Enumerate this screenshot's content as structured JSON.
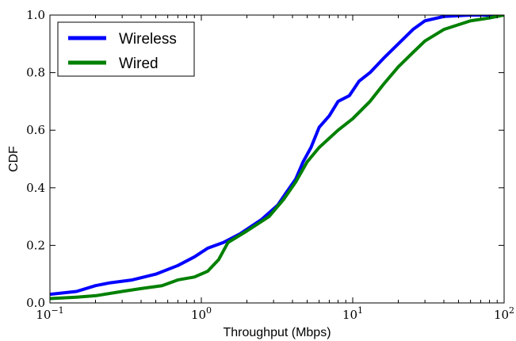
{
  "chart_data": {
    "type": "line",
    "title": "",
    "xlabel": "Throughput (Mbps)",
    "ylabel": "CDF",
    "xscale": "log",
    "xlim": [
      0.1,
      100
    ],
    "ylim": [
      0.0,
      1.0
    ],
    "x_ticks": [
      {
        "value": 0.1,
        "base": "10",
        "exp": "−1"
      },
      {
        "value": 1,
        "base": "10",
        "exp": "0"
      },
      {
        "value": 10,
        "base": "10",
        "exp": "1"
      },
      {
        "value": 100,
        "base": "10",
        "exp": "2"
      }
    ],
    "y_ticks": [
      {
        "value": 0.0,
        "label": "0.0"
      },
      {
        "value": 0.2,
        "label": "0.2"
      },
      {
        "value": 0.4,
        "label": "0.4"
      },
      {
        "value": 0.6,
        "label": "0.6"
      },
      {
        "value": 0.8,
        "label": "0.8"
      },
      {
        "value": 1.0,
        "label": "1.0"
      }
    ],
    "grid": false,
    "legend_position": "top-left",
    "series": [
      {
        "name": "Wireless",
        "color": "#0000ff",
        "points": [
          [
            0.1,
            0.03
          ],
          [
            0.15,
            0.04
          ],
          [
            0.2,
            0.06
          ],
          [
            0.25,
            0.07
          ],
          [
            0.35,
            0.08
          ],
          [
            0.5,
            0.1
          ],
          [
            0.7,
            0.13
          ],
          [
            0.9,
            0.16
          ],
          [
            1.1,
            0.19
          ],
          [
            1.4,
            0.21
          ],
          [
            1.8,
            0.24
          ],
          [
            2.5,
            0.29
          ],
          [
            3.2,
            0.34
          ],
          [
            3.6,
            0.38
          ],
          [
            4.2,
            0.43
          ],
          [
            4.7,
            0.49
          ],
          [
            5.3,
            0.54
          ],
          [
            6.0,
            0.61
          ],
          [
            7.0,
            0.65
          ],
          [
            8.0,
            0.7
          ],
          [
            9.5,
            0.72
          ],
          [
            11,
            0.77
          ],
          [
            13,
            0.8
          ],
          [
            16,
            0.85
          ],
          [
            20,
            0.9
          ],
          [
            25,
            0.95
          ],
          [
            30,
            0.98
          ],
          [
            40,
            0.995
          ],
          [
            60,
            1.0
          ],
          [
            100,
            1.0
          ]
        ]
      },
      {
        "name": "Wired",
        "color": "#008000",
        "points": [
          [
            0.1,
            0.015
          ],
          [
            0.15,
            0.02
          ],
          [
            0.2,
            0.025
          ],
          [
            0.3,
            0.04
          ],
          [
            0.4,
            0.05
          ],
          [
            0.55,
            0.06
          ],
          [
            0.7,
            0.08
          ],
          [
            0.9,
            0.09
          ],
          [
            1.1,
            0.11
          ],
          [
            1.3,
            0.15
          ],
          [
            1.5,
            0.21
          ],
          [
            2.0,
            0.25
          ],
          [
            2.8,
            0.3
          ],
          [
            3.5,
            0.36
          ],
          [
            4.2,
            0.42
          ],
          [
            5.0,
            0.49
          ],
          [
            6.0,
            0.54
          ],
          [
            8.0,
            0.6
          ],
          [
            10,
            0.64
          ],
          [
            13,
            0.7
          ],
          [
            16,
            0.76
          ],
          [
            20,
            0.82
          ],
          [
            25,
            0.87
          ],
          [
            30,
            0.91
          ],
          [
            40,
            0.95
          ],
          [
            60,
            0.98
          ],
          [
            80,
            0.99
          ],
          [
            100,
            1.0
          ]
        ]
      }
    ]
  }
}
